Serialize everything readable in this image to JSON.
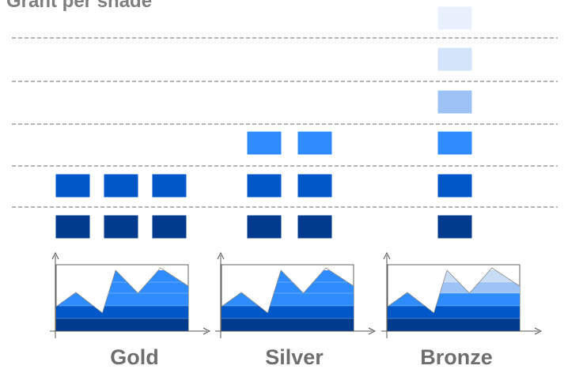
{
  "title": "Grant per shade",
  "shades": [
    "#003b8e",
    "#0057c8",
    "#2f8cff",
    "#9cc2f6",
    "#d3e4fb",
    "#e8f1fd"
  ],
  "colors": {
    "title_text": "#7f7f7f",
    "label_text": "#6e6e6e",
    "divider": "#666666",
    "axis": "#555555",
    "chart_frame": "#666666",
    "peak_fill": "#c9dcf5"
  },
  "tiers": [
    {
      "name": "Gold",
      "shade_grid": [
        [
          0,
          0,
          0
        ],
        [
          1,
          1,
          1
        ]
      ],
      "area_levels": [
        0,
        1,
        2,
        2,
        2
      ]
    },
    {
      "name": "Silver",
      "shade_grid": [
        [
          0,
          0
        ],
        [
          1,
          1
        ],
        [
          2,
          2
        ]
      ],
      "area_levels": [
        0,
        1,
        2,
        2,
        2
      ]
    },
    {
      "name": "Bronze",
      "shade_grid": [
        [
          0
        ],
        [
          1
        ],
        [
          2
        ],
        [
          3
        ],
        [
          4
        ],
        [
          5
        ]
      ],
      "area_levels": [
        0,
        1,
        2,
        3,
        "peak"
      ]
    }
  ]
}
